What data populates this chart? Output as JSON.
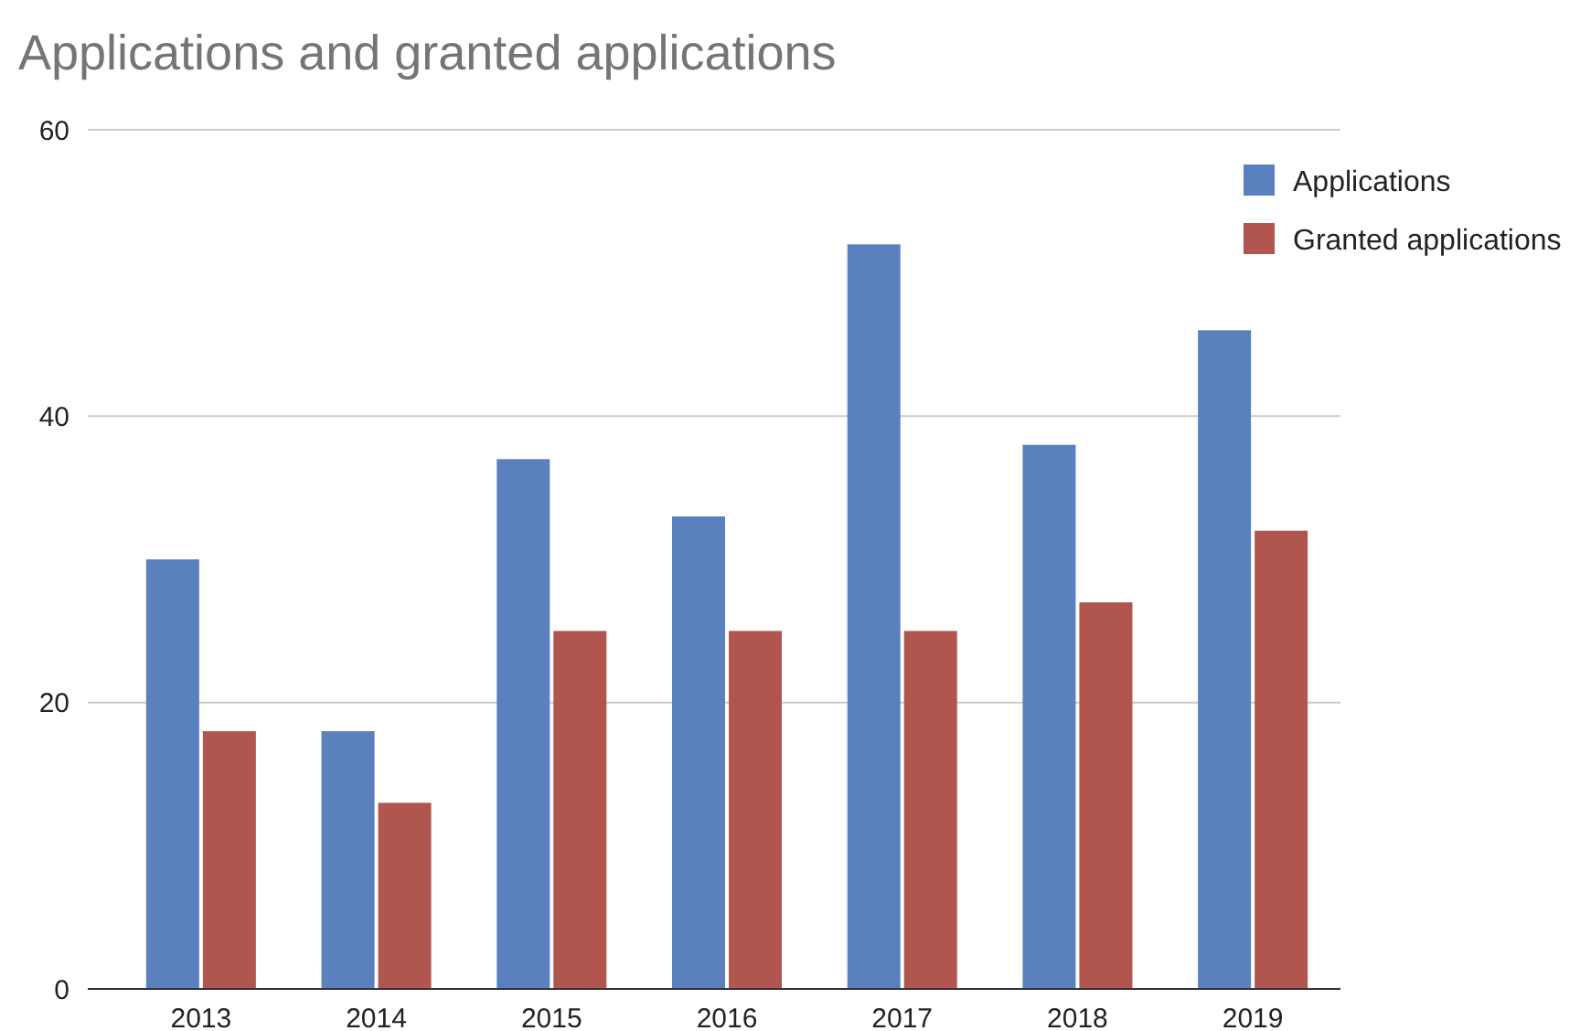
{
  "chart_data": {
    "type": "bar",
    "title": "Applications and granted applications",
    "categories": [
      "2013",
      "2014",
      "2015",
      "2016",
      "2017",
      "2018",
      "2019"
    ],
    "series": [
      {
        "name": "Applications",
        "color": "#5a80bd",
        "values": [
          30,
          18,
          37,
          33,
          52,
          38,
          46
        ]
      },
      {
        "name": "Granted applications",
        "color": "#b0564f",
        "values": [
          18,
          13,
          25,
          25,
          25,
          27,
          32
        ]
      }
    ],
    "ylim": [
      0,
      60
    ],
    "yticks": [
      0,
      20,
      40,
      60
    ],
    "grid": "y",
    "legend": "top right"
  }
}
